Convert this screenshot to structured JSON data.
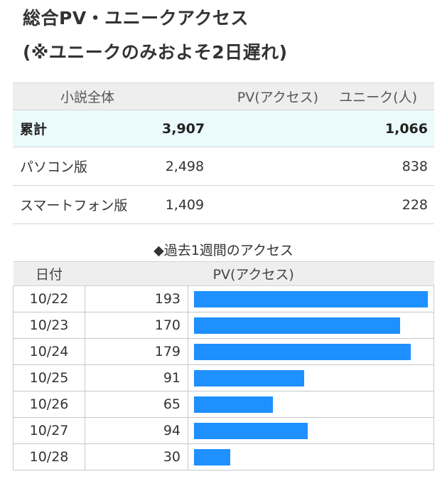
{
  "header": {
    "title_line1": "総合PV・ユニークアクセス",
    "title_line2": "(※ユニークのみおよそ2日遅れ)"
  },
  "summary": {
    "columns": [
      "小説全体",
      "PV(アクセス)",
      "ユニーク(人)"
    ],
    "total": {
      "label": "累計",
      "pv": "3,907",
      "unique": "1,066"
    },
    "rows": [
      {
        "label": "パソコン版",
        "pv": "2,498",
        "unique": "838"
      },
      {
        "label": "スマートフォン版",
        "pv": "1,409",
        "unique": "228"
      }
    ]
  },
  "weekly": {
    "caption": "◆過去1週間のアクセス",
    "columns": [
      "日付",
      "PV(アクセス)"
    ],
    "rows": [
      {
        "date": "10/22",
        "pv": "193"
      },
      {
        "date": "10/23",
        "pv": "170"
      },
      {
        "date": "10/24",
        "pv": "179"
      },
      {
        "date": "10/25",
        "pv": "91"
      },
      {
        "date": "10/26",
        "pv": "65"
      },
      {
        "date": "10/27",
        "pv": "94"
      },
      {
        "date": "10/28",
        "pv": "30"
      }
    ],
    "bar_color": "#1e90ff",
    "bar_max": 193
  }
}
